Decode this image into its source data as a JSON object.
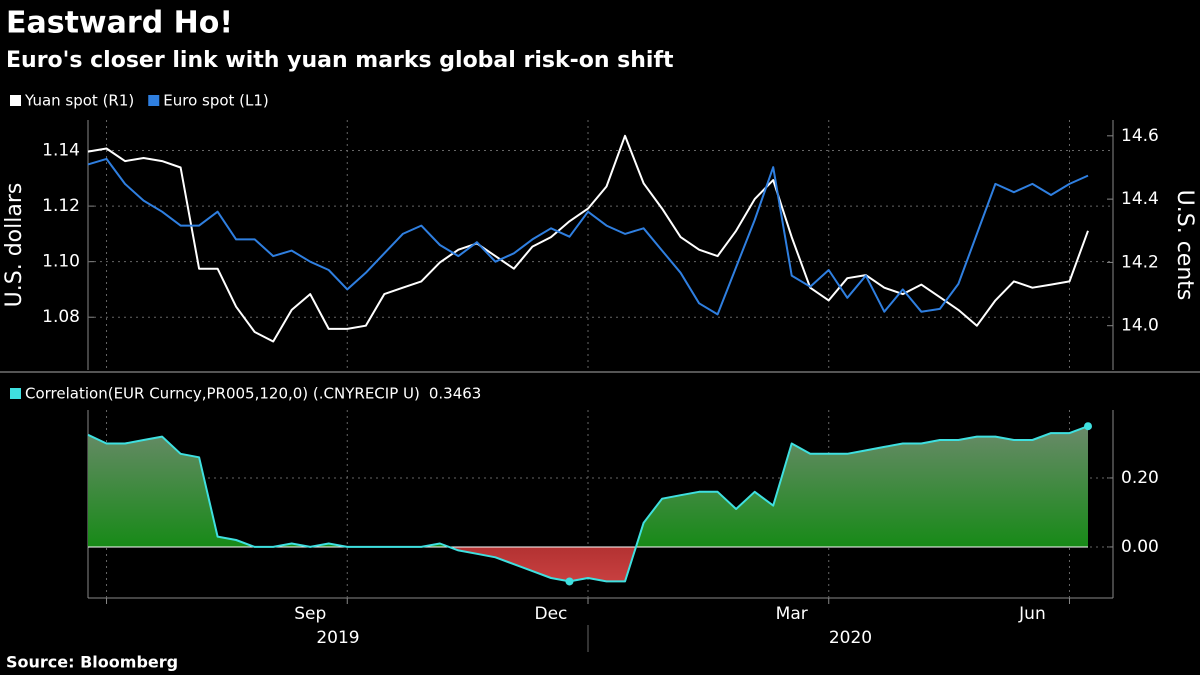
{
  "title": "Eastward Ho!",
  "subtitle": "Euro's closer link with yuan marks global risk-on shift",
  "source": "Source: Bloomberg",
  "chart_data": [
    {
      "type": "line",
      "ylabel": "U.S. dollars",
      "y2label": "U.S. cents",
      "ylim": [
        1.061,
        1.151
      ],
      "yticks": [
        1.08,
        {
          "value": 1.1,
          "label": "1.10"
        },
        1.12,
        1.14
      ],
      "y2lim": [
        13.86,
        14.65
      ],
      "y2ticks": [
        {
          "value": 14,
          "label": "14.0"
        },
        14.2,
        14.4,
        14.6
      ],
      "grid": true,
      "series": [
        {
          "name": "Yuan spot (R1)",
          "color": "#ffffff",
          "axis": "y2",
          "values": [
            14.55,
            14.56,
            14.52,
            14.53,
            14.52,
            14.5,
            14.18,
            14.18,
            14.06,
            13.98,
            13.95,
            14.05,
            14.1,
            13.99,
            13.99,
            14.0,
            14.1,
            14.12,
            14.14,
            14.2,
            14.24,
            14.26,
            14.22,
            14.18,
            14.25,
            14.28,
            14.33,
            14.37,
            14.44,
            14.6,
            14.45,
            14.37,
            14.28,
            14.24,
            14.22,
            14.3,
            14.4,
            14.46,
            14.28,
            14.12,
            14.08,
            14.15,
            14.16,
            14.12,
            14.1,
            14.13,
            14.09,
            14.05,
            14.0,
            14.08,
            14.14,
            14.12,
            14.13,
            14.14,
            14.3
          ]
        },
        {
          "name": "Euro spot (L1)",
          "color": "#2f7fe0",
          "axis": "y",
          "values": [
            1.135,
            1.137,
            1.128,
            1.122,
            1.118,
            1.113,
            1.113,
            1.118,
            1.108,
            1.108,
            1.102,
            1.104,
            1.1,
            1.097,
            1.09,
            1.096,
            1.103,
            1.11,
            1.113,
            1.106,
            1.102,
            1.107,
            1.1,
            1.103,
            1.108,
            1.112,
            1.109,
            1.118,
            1.113,
            1.11,
            1.112,
            1.104,
            1.096,
            1.085,
            1.081,
            1.098,
            1.115,
            1.134,
            1.095,
            1.091,
            1.097,
            1.087,
            1.095,
            1.082,
            1.09,
            1.082,
            1.083,
            1.092,
            1.11,
            1.128,
            1.125,
            1.128,
            1.124,
            1.128,
            1.131
          ]
        }
      ]
    },
    {
      "type": "area",
      "ylim": [
        -0.148,
        0.397
      ],
      "yticks": [
        {
          "value": 0,
          "label": "0.00"
        },
        {
          "value": 0.2,
          "label": "0.20"
        }
      ],
      "grid": true,
      "categories": [
        null,
        null,
        null,
        null,
        null,
        null,
        null,
        null,
        null,
        null,
        null,
        null,
        "Sep",
        null,
        null,
        null,
        null,
        null,
        null,
        null,
        null,
        null,
        null,
        null,
        null,
        "Dec",
        null,
        null,
        null,
        null,
        null,
        null,
        null,
        null,
        null,
        null,
        null,
        null,
        "Mar",
        null,
        null,
        null,
        null,
        null,
        null,
        null,
        null,
        null,
        null,
        null,
        null,
        "Jun",
        null,
        null,
        null
      ],
      "years": [
        "2019",
        "2020"
      ],
      "current_value": 0.3463,
      "series": [
        {
          "name": "Correlation(EUR Curncy,PR005,120,0) (.CNYRECIP U)",
          "color": "#3fe0e0",
          "values": [
            0.325,
            0.3,
            0.3,
            0.31,
            0.32,
            0.27,
            0.26,
            0.03,
            0.02,
            0.0,
            0.0,
            0.01,
            0.0,
            0.01,
            0.0,
            0.0,
            0.0,
            0.0,
            0.0,
            0.01,
            -0.01,
            -0.02,
            -0.03,
            -0.05,
            -0.07,
            -0.09,
            -0.1,
            -0.09,
            -0.1,
            -0.1,
            0.07,
            0.14,
            0.15,
            0.16,
            0.16,
            0.11,
            0.16,
            0.12,
            0.3,
            0.27,
            0.27,
            0.27,
            0.28,
            0.29,
            0.3,
            0.3,
            0.31,
            0.31,
            0.32,
            0.32,
            0.31,
            0.31,
            0.33,
            0.33,
            0.35
          ]
        }
      ]
    }
  ]
}
